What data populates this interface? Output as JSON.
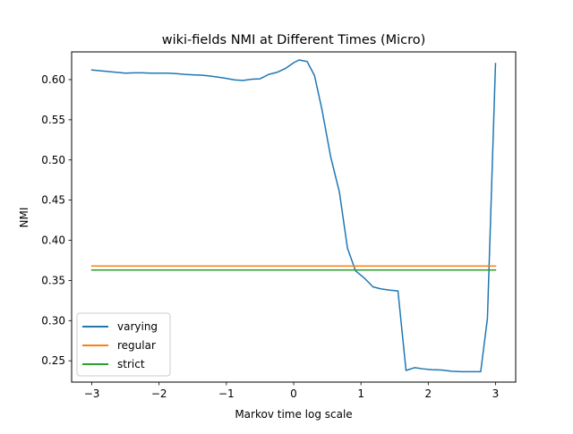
{
  "chart_data": {
    "type": "line",
    "title": "wiki-fields NMI at Different Times (Micro)",
    "xlabel": "Markov time log scale",
    "ylabel": "NMI",
    "xlim": [
      -3.3,
      3.3
    ],
    "ylim": [
      0.2235,
      0.6345
    ],
    "xticks": [
      -3,
      -2,
      -1,
      0,
      1,
      2,
      3
    ],
    "xtick_labels": [
      "−3",
      "−2",
      "−1",
      "0",
      "1",
      "2",
      "3"
    ],
    "yticks": [
      0.25,
      0.3,
      0.35,
      0.4,
      0.45,
      0.5,
      0.55,
      0.6
    ],
    "ytick_labels": [
      "0.25",
      "0.30",
      "0.35",
      "0.40",
      "0.45",
      "0.50",
      "0.55",
      "0.60"
    ],
    "grid": false,
    "legend_position": "lower-left",
    "series": [
      {
        "name": "varying",
        "color": "#1f77b4",
        "x": [
          -3.0,
          -2.87,
          -2.75,
          -2.62,
          -2.5,
          -2.37,
          -2.25,
          -2.12,
          -2.0,
          -1.87,
          -1.75,
          -1.62,
          -1.5,
          -1.37,
          -1.25,
          -1.12,
          -1.0,
          -0.87,
          -0.75,
          -0.62,
          -0.5,
          -0.37,
          -0.25,
          -0.12,
          0.0,
          0.08,
          0.2,
          0.31,
          0.42,
          0.55,
          0.68,
          0.8,
          0.92,
          1.05,
          1.18,
          1.3,
          1.43,
          1.55,
          1.67,
          1.8,
          1.92,
          2.05,
          2.2,
          2.35,
          2.5,
          2.65,
          2.78,
          2.88,
          3.0
        ],
        "y": [
          0.612,
          0.611,
          0.61,
          0.609,
          0.608,
          0.6085,
          0.6085,
          0.608,
          0.608,
          0.608,
          0.6075,
          0.6065,
          0.606,
          0.6055,
          0.6045,
          0.603,
          0.6015,
          0.5995,
          0.599,
          0.6005,
          0.601,
          0.6065,
          0.609,
          0.614,
          0.621,
          0.6245,
          0.6225,
          0.605,
          0.563,
          0.504,
          0.46,
          0.39,
          0.362,
          0.353,
          0.342,
          0.3395,
          0.338,
          0.337,
          0.238,
          0.2415,
          0.24,
          0.239,
          0.2385,
          0.237,
          0.2365,
          0.2365,
          0.2365,
          0.303,
          0.62
        ]
      },
      {
        "name": "regular",
        "color": "#ff7f0e",
        "x": [
          -3.0,
          3.0
        ],
        "y": [
          0.368,
          0.368
        ]
      },
      {
        "name": "strict",
        "color": "#2ca02c",
        "x": [
          -3.0,
          3.0
        ],
        "y": [
          0.363,
          0.363
        ]
      }
    ]
  }
}
